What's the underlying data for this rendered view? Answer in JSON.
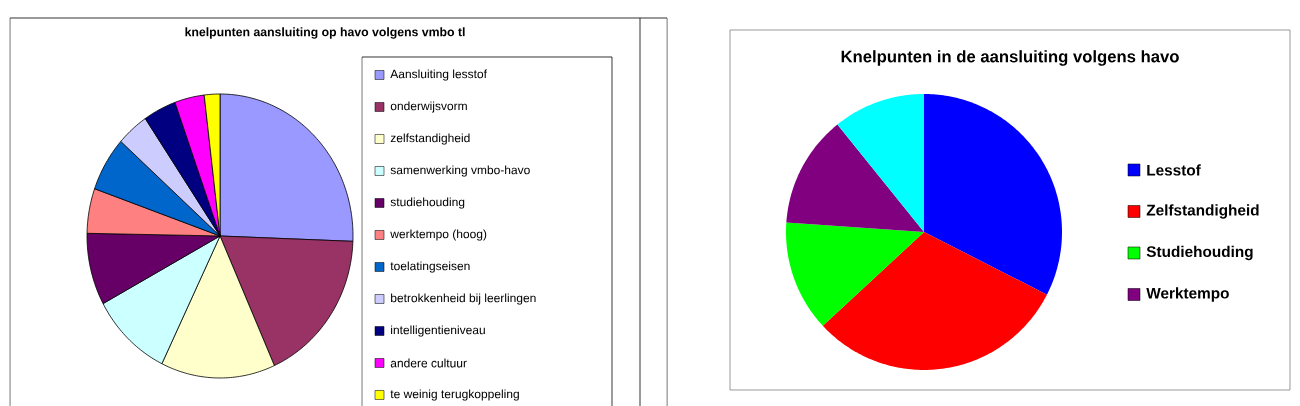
{
  "chart_data": [
    {
      "type": "pie",
      "title": "knelpunten aansluiting op havo volgens vmbo tl",
      "legend": "right",
      "categories": [
        "Aansluiting lesstof",
        "onderwijsvorm",
        "zelfstandigheid",
        "samenwerking vmbo-havo",
        "studiehouding",
        "werktempo (hoog)",
        "toelatingseisen",
        "betrokkenheid bij leerlingen",
        "intelligentieniveau",
        "andere cultuur",
        "te weinig terugkoppeling"
      ],
      "values": [
        25.6,
        17.7,
        13.9,
        9.9,
        8.2,
        5.1,
        6.2,
        3.9,
        4.0,
        3.6,
        1.9
      ],
      "colors": [
        "#9999ff",
        "#993366",
        "#ffffcc",
        "#ccffff",
        "#660066",
        "#ff8080",
        "#0066cc",
        "#ccccff",
        "#000080",
        "#ff00ff",
        "#ffff00"
      ]
    },
    {
      "type": "pie",
      "title": "Knelpunten in de aansluiting volgens havo",
      "legend": "right",
      "categories": [
        "Lesstof",
        "Zelfstandigheid",
        "Studiehouding",
        "Werktempo",
        null
      ],
      "values": [
        32.5,
        30.6,
        13.0,
        13.1,
        10.8
      ],
      "colors": [
        "#0000ff",
        "#ff0000",
        "#00ff00",
        "#800080",
        "#00ffff"
      ]
    }
  ]
}
